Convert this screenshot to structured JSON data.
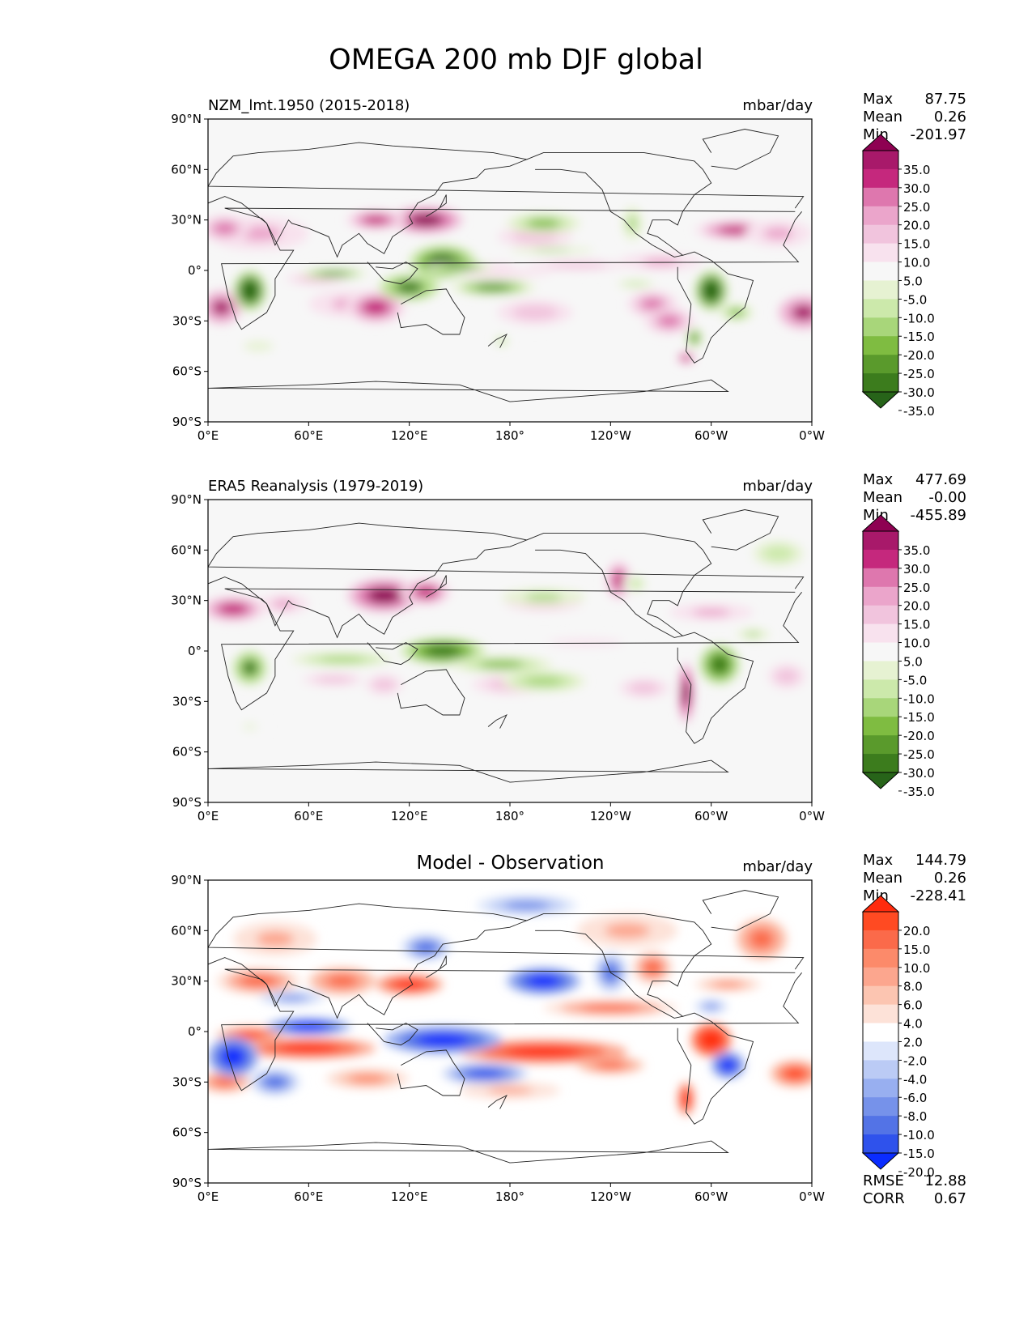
{
  "figure": {
    "title": "OMEGA 200 mb DJF global"
  },
  "chart_data": [
    {
      "type": "heatmap",
      "title_left": "NZM_lmt.1950 (2015-2018)",
      "units": "mbar/day",
      "stats": {
        "max_label": "Max",
        "max": "87.75",
        "mean_label": "Mean",
        "mean": "0.26",
        "min_label": "Min",
        "min": "-201.97"
      },
      "xticks": [
        "0°E",
        "60°E",
        "120°E",
        "180°",
        "120°W",
        "60°W",
        "0°W"
      ],
      "yticks": [
        "90°N",
        "60°N",
        "30°N",
        "0°",
        "30°S",
        "60°S",
        "90°S"
      ],
      "xlim": [
        0,
        360
      ],
      "ylim": [
        -90,
        90
      ],
      "colorbar": {
        "levels": [
          "35.0",
          "30.0",
          "25.0",
          "20.0",
          "15.0",
          "10.0",
          "5.0",
          "-5.0",
          "-10.0",
          "-15.0",
          "-20.0",
          "-25.0",
          "-30.0",
          "-35.0"
        ],
        "colors": [
          "#8e0152",
          "#a8196a",
          "#c5287d",
          "#de77ae",
          "#eba5cb",
          "#f1c4dd",
          "#f8e2ee",
          "#f7f7f7",
          "#e6f2d2",
          "#cce9ab",
          "#a8d67a",
          "#7fbc41",
          "#5a9a2c",
          "#3c7c1d",
          "#276419"
        ]
      },
      "blobs": [
        {
          "lon": 130,
          "lat": 30,
          "rx": 22,
          "ry": 8,
          "v": 38
        },
        {
          "lon": 100,
          "lat": 30,
          "rx": 18,
          "ry": 6,
          "v": 25
        },
        {
          "lon": 30,
          "lat": 22,
          "rx": 30,
          "ry": 10,
          "v": 15
        },
        {
          "lon": 10,
          "lat": 25,
          "rx": 15,
          "ry": 8,
          "v": 20
        },
        {
          "lon": 315,
          "lat": 24,
          "rx": 25,
          "ry": 6,
          "v": 25
        },
        {
          "lon": 340,
          "lat": 22,
          "rx": 20,
          "ry": 8,
          "v": 15
        },
        {
          "lon": 195,
          "lat": 20,
          "rx": 30,
          "ry": 8,
          "v": 10
        },
        {
          "lon": 170,
          "lat": 0,
          "rx": 50,
          "ry": 6,
          "v": 8
        },
        {
          "lon": 220,
          "lat": 3,
          "rx": 40,
          "ry": 4,
          "v": 12
        },
        {
          "lon": 270,
          "lat": 5,
          "rx": 25,
          "ry": 5,
          "v": 15
        },
        {
          "lon": 85,
          "lat": -20,
          "rx": 25,
          "ry": 8,
          "v": 15
        },
        {
          "lon": 65,
          "lat": -5,
          "rx": 25,
          "ry": 5,
          "v": 10
        },
        {
          "lon": 100,
          "lat": -22,
          "rx": 18,
          "ry": 10,
          "v": 28
        },
        {
          "lon": 195,
          "lat": -25,
          "rx": 30,
          "ry": 10,
          "v": 12
        },
        {
          "lon": 265,
          "lat": -20,
          "rx": 15,
          "ry": 8,
          "v": 22
        },
        {
          "lon": 275,
          "lat": -30,
          "rx": 15,
          "ry": 8,
          "v": 20
        },
        {
          "lon": 355,
          "lat": -25,
          "rx": 15,
          "ry": 10,
          "v": 30
        },
        {
          "lon": 8,
          "lat": -22,
          "rx": 12,
          "ry": 10,
          "v": 30
        },
        {
          "lon": 285,
          "lat": -52,
          "rx": 6,
          "ry": 4,
          "v": 25
        },
        {
          "lon": 140,
          "lat": 5,
          "rx": 20,
          "ry": 10,
          "v": -38
        },
        {
          "lon": 170,
          "lat": -10,
          "rx": 25,
          "ry": 5,
          "v": -25
        },
        {
          "lon": 120,
          "lat": -10,
          "rx": 18,
          "ry": 8,
          "v": -30
        },
        {
          "lon": 75,
          "lat": -2,
          "rx": 20,
          "ry": 3,
          "v": -25
        },
        {
          "lon": 150,
          "lat": 2,
          "rx": 20,
          "ry": 3,
          "v": -25
        },
        {
          "lon": 25,
          "lat": -12,
          "rx": 10,
          "ry": 12,
          "v": -40
        },
        {
          "lon": 300,
          "lat": -12,
          "rx": 10,
          "ry": 12,
          "v": -40
        },
        {
          "lon": 315,
          "lat": -25,
          "rx": 10,
          "ry": 5,
          "v": -20
        },
        {
          "lon": 200,
          "lat": 28,
          "rx": 22,
          "ry": 6,
          "v": -22
        },
        {
          "lon": 205,
          "lat": 12,
          "rx": 25,
          "ry": 2,
          "v": -15
        },
        {
          "lon": 255,
          "lat": -8,
          "rx": 15,
          "ry": 3,
          "v": -10
        },
        {
          "lon": 30,
          "lat": -45,
          "rx": 12,
          "ry": 4,
          "v": -8
        },
        {
          "lon": 290,
          "lat": -40,
          "rx": 5,
          "ry": 6,
          "v": -25
        },
        {
          "lon": 175,
          "lat": -42,
          "rx": 4,
          "ry": 3,
          "v": -15
        },
        {
          "lon": 253,
          "lat": 28,
          "rx": 6,
          "ry": 10,
          "v": -15
        }
      ]
    },
    {
      "type": "heatmap",
      "title_left": "ERA5 Reanalysis (1979-2019)",
      "units": "mbar/day",
      "stats": {
        "max_label": "Max",
        "max": "477.69",
        "mean_label": "Mean",
        "mean": "-0.00",
        "min_label": "Min",
        "min": "-455.89"
      },
      "xticks": [
        "0°E",
        "60°E",
        "120°E",
        "180°",
        "120°W",
        "60°W",
        "0°W"
      ],
      "yticks": [
        "90°N",
        "60°N",
        "30°N",
        "0°",
        "30°S",
        "60°S",
        "90°S"
      ],
      "xlim": [
        0,
        360
      ],
      "ylim": [
        -90,
        90
      ],
      "colorbar": {
        "levels": [
          "35.0",
          "30.0",
          "25.0",
          "20.0",
          "15.0",
          "10.0",
          "5.0",
          "-5.0",
          "-10.0",
          "-15.0",
          "-20.0",
          "-25.0",
          "-30.0",
          "-35.0"
        ],
        "colors": [
          "#8e0152",
          "#a8196a",
          "#c5287d",
          "#de77ae",
          "#eba5cb",
          "#f1c4dd",
          "#f8e2ee",
          "#f7f7f7",
          "#e6f2d2",
          "#cce9ab",
          "#a8d67a",
          "#7fbc41",
          "#5a9a2c",
          "#3c7c1d",
          "#276419"
        ]
      },
      "blobs": [
        {
          "lon": 105,
          "lat": 33,
          "rx": 22,
          "ry": 10,
          "v": 35
        },
        {
          "lon": 130,
          "lat": 35,
          "rx": 15,
          "ry": 8,
          "v": 25
        },
        {
          "lon": 15,
          "lat": 25,
          "rx": 20,
          "ry": 8,
          "v": 25
        },
        {
          "lon": 45,
          "lat": 28,
          "rx": 15,
          "ry": 6,
          "v": 15
        },
        {
          "lon": 245,
          "lat": 42,
          "rx": 8,
          "ry": 12,
          "v": 25
        },
        {
          "lon": 200,
          "lat": 28,
          "rx": 30,
          "ry": 6,
          "v": 10
        },
        {
          "lon": 300,
          "lat": 23,
          "rx": 25,
          "ry": 5,
          "v": 15
        },
        {
          "lon": 180,
          "lat": -20,
          "rx": 30,
          "ry": 8,
          "v": 10
        },
        {
          "lon": 75,
          "lat": -17,
          "rx": 25,
          "ry": 5,
          "v": 12
        },
        {
          "lon": 105,
          "lat": -20,
          "rx": 15,
          "ry": 8,
          "v": 12
        },
        {
          "lon": 285,
          "lat": -25,
          "rx": 5,
          "ry": 18,
          "v": 38
        },
        {
          "lon": 260,
          "lat": -22,
          "rx": 20,
          "ry": 8,
          "v": 10
        },
        {
          "lon": 345,
          "lat": -15,
          "rx": 15,
          "ry": 10,
          "v": 10
        },
        {
          "lon": 225,
          "lat": 5,
          "rx": 30,
          "ry": 3,
          "v": 8
        },
        {
          "lon": 140,
          "lat": 0,
          "rx": 25,
          "ry": 8,
          "v": -32
        },
        {
          "lon": 175,
          "lat": -8,
          "rx": 30,
          "ry": 5,
          "v": -22
        },
        {
          "lon": 200,
          "lat": -18,
          "rx": 25,
          "ry": 6,
          "v": -18
        },
        {
          "lon": 80,
          "lat": -5,
          "rx": 30,
          "ry": 4,
          "v": -18
        },
        {
          "lon": 25,
          "lat": -10,
          "rx": 10,
          "ry": 10,
          "v": -30
        },
        {
          "lon": 305,
          "lat": -8,
          "rx": 12,
          "ry": 12,
          "v": -32
        },
        {
          "lon": 200,
          "lat": 32,
          "rx": 25,
          "ry": 5,
          "v": -15
        },
        {
          "lon": 340,
          "lat": 58,
          "rx": 20,
          "ry": 10,
          "v": -12
        },
        {
          "lon": 325,
          "lat": 10,
          "rx": 10,
          "ry": 3,
          "v": -15
        },
        {
          "lon": 255,
          "lat": 40,
          "rx": 8,
          "ry": 6,
          "v": -10
        },
        {
          "lon": 25,
          "lat": -45,
          "rx": 10,
          "ry": 4,
          "v": -6
        }
      ]
    },
    {
      "type": "heatmap",
      "title_center": "Model - Observation",
      "units": "mbar/day",
      "stats": {
        "max_label": "Max",
        "max": "144.79",
        "mean_label": "Mean",
        "mean": "0.26",
        "min_label": "Min",
        "min": "-228.41"
      },
      "metrics": {
        "rmse_label": "RMSE",
        "rmse": "12.88",
        "corr_label": "CORR",
        "corr": "0.67"
      },
      "xticks": [
        "0°E",
        "60°E",
        "120°E",
        "180°",
        "120°W",
        "60°W",
        "0°W"
      ],
      "yticks": [
        "90°N",
        "60°N",
        "30°N",
        "0°",
        "30°S",
        "60°S",
        "90°S"
      ],
      "xlim": [
        0,
        360
      ],
      "ylim": [
        -90,
        90
      ],
      "colorbar": {
        "levels": [
          "20.0",
          "15.0",
          "10.0",
          "8.0",
          "6.0",
          "4.0",
          "2.0",
          "-2.0",
          "-4.0",
          "-6.0",
          "-8.0",
          "-10.0",
          "-15.0",
          "-20.0"
        ],
        "colors": [
          "#ff2b0d",
          "#ff4a22",
          "#fb6a4a",
          "#fc8a6a",
          "#fca68e",
          "#fcc5b1",
          "#fde2d8",
          "#ffffff",
          "#dde6fb",
          "#bbcbf5",
          "#98aff0",
          "#7692ea",
          "#5373e6",
          "#2f52ec",
          "#0a2cff"
        ]
      },
      "blobs": [
        {
          "lon": 120,
          "lat": 28,
          "rx": 20,
          "ry": 6,
          "v": 22
        },
        {
          "lon": 80,
          "lat": 30,
          "rx": 20,
          "ry": 8,
          "v": 12
        },
        {
          "lon": 30,
          "lat": 30,
          "rx": 25,
          "ry": 8,
          "v": 10
        },
        {
          "lon": 40,
          "lat": 55,
          "rx": 25,
          "ry": 10,
          "v": 6
        },
        {
          "lon": 330,
          "lat": 55,
          "rx": 15,
          "ry": 12,
          "v": 12
        },
        {
          "lon": 250,
          "lat": 60,
          "rx": 30,
          "ry": 10,
          "v": 6
        },
        {
          "lon": 60,
          "lat": -10,
          "rx": 40,
          "ry": 6,
          "v": 22
        },
        {
          "lon": 25,
          "lat": -2,
          "rx": 20,
          "ry": 5,
          "v": 15
        },
        {
          "lon": 200,
          "lat": -12,
          "rx": 50,
          "ry": 7,
          "v": 22
        },
        {
          "lon": 300,
          "lat": -5,
          "rx": 12,
          "ry": 10,
          "v": 25
        },
        {
          "lon": 10,
          "lat": -30,
          "rx": 15,
          "ry": 6,
          "v": 12
        },
        {
          "lon": 350,
          "lat": -25,
          "rx": 15,
          "ry": 8,
          "v": 15
        },
        {
          "lon": 240,
          "lat": 14,
          "rx": 40,
          "ry": 5,
          "v": 10
        },
        {
          "lon": 180,
          "lat": -35,
          "rx": 30,
          "ry": 5,
          "v": 6
        },
        {
          "lon": 95,
          "lat": -28,
          "rx": 25,
          "ry": 6,
          "v": 8
        },
        {
          "lon": 285,
          "lat": -40,
          "rx": 5,
          "ry": 10,
          "v": 20
        },
        {
          "lon": 265,
          "lat": 38,
          "rx": 12,
          "ry": 10,
          "v": 10
        },
        {
          "lon": 310,
          "lat": 28,
          "rx": 20,
          "ry": 4,
          "v": 8
        },
        {
          "lon": 200,
          "lat": 30,
          "rx": 22,
          "ry": 8,
          "v": -22
        },
        {
          "lon": 140,
          "lat": -5,
          "rx": 35,
          "ry": 8,
          "v": -20
        },
        {
          "lon": 60,
          "lat": 3,
          "rx": 25,
          "ry": 5,
          "v": -22
        },
        {
          "lon": 15,
          "lat": -15,
          "rx": 15,
          "ry": 12,
          "v": -22
        },
        {
          "lon": 165,
          "lat": -25,
          "rx": 25,
          "ry": 6,
          "v": -15
        },
        {
          "lon": 40,
          "lat": -30,
          "rx": 15,
          "ry": 8,
          "v": -10
        },
        {
          "lon": 310,
          "lat": -20,
          "rx": 10,
          "ry": 8,
          "v": -22
        },
        {
          "lon": 300,
          "lat": 15,
          "rx": 10,
          "ry": 4,
          "v": -8
        },
        {
          "lon": 130,
          "lat": 50,
          "rx": 15,
          "ry": 8,
          "v": -10
        },
        {
          "lon": 190,
          "lat": 75,
          "rx": 30,
          "ry": 6,
          "v": -8
        },
        {
          "lon": 240,
          "lat": 35,
          "rx": 10,
          "ry": 12,
          "v": -10
        },
        {
          "lon": 50,
          "lat": 20,
          "rx": 20,
          "ry": 4,
          "v": -8
        },
        {
          "lon": 240,
          "lat": -20,
          "rx": 20,
          "ry": 5,
          "v": 12
        }
      ]
    }
  ]
}
